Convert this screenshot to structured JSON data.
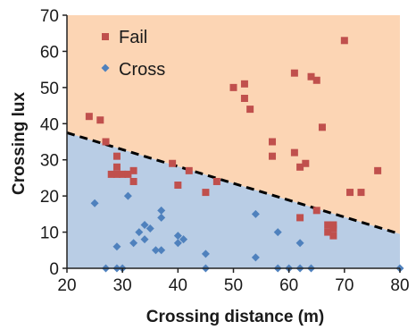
{
  "chart_data": {
    "type": "scatter",
    "title": "",
    "xlabel": "Crossing distance (m)",
    "ylabel": "Crossing lux",
    "xlim": [
      20,
      80
    ],
    "ylim": [
      0,
      70
    ],
    "xticks": [
      20,
      30,
      40,
      50,
      60,
      70,
      80
    ],
    "yticks": [
      0,
      10,
      20,
      30,
      40,
      50,
      60,
      70
    ],
    "grid": false,
    "legend_position": "top-left",
    "regions": {
      "upper_color": "#fcd5b4",
      "lower_color": "#b9cde5"
    },
    "boundary_line": {
      "style": "dashed",
      "color": "#000000",
      "x": [
        20,
        80
      ],
      "y": [
        37.5,
        9.5
      ]
    },
    "series": [
      {
        "name": "Fail",
        "marker": "square",
        "color": "#c0504d",
        "points": [
          [
            24,
            42
          ],
          [
            26,
            41
          ],
          [
            27,
            35
          ],
          [
            28,
            26
          ],
          [
            29,
            26
          ],
          [
            29,
            28
          ],
          [
            29,
            31
          ],
          [
            30,
            26
          ],
          [
            31,
            26
          ],
          [
            32,
            24
          ],
          [
            32,
            27
          ],
          [
            39,
            29
          ],
          [
            40,
            23
          ],
          [
            42,
            27
          ],
          [
            45,
            21
          ],
          [
            47,
            24
          ],
          [
            50,
            50
          ],
          [
            52,
            51
          ],
          [
            52,
            47
          ],
          [
            53,
            44
          ],
          [
            57,
            31
          ],
          [
            57,
            35
          ],
          [
            61,
            54
          ],
          [
            61,
            32
          ],
          [
            62,
            28
          ],
          [
            62,
            14
          ],
          [
            63,
            29
          ],
          [
            64,
            53
          ],
          [
            65,
            52
          ],
          [
            65,
            16
          ],
          [
            66,
            39
          ],
          [
            67,
            12
          ],
          [
            67,
            10
          ],
          [
            68,
            12
          ],
          [
            68,
            11
          ],
          [
            68,
            9
          ],
          [
            70,
            63
          ],
          [
            71,
            21
          ],
          [
            73,
            21
          ],
          [
            76,
            27
          ]
        ]
      },
      {
        "name": "Cross",
        "marker": "diamond",
        "color": "#4f81bd",
        "points": [
          [
            25,
            18
          ],
          [
            27,
            0
          ],
          [
            29,
            0
          ],
          [
            29,
            6
          ],
          [
            30,
            0
          ],
          [
            31,
            20
          ],
          [
            32,
            7
          ],
          [
            33,
            10
          ],
          [
            34,
            12
          ],
          [
            34,
            8
          ],
          [
            35,
            11
          ],
          [
            36,
            5
          ],
          [
            37,
            14
          ],
          [
            37,
            16
          ],
          [
            37,
            5
          ],
          [
            40,
            9
          ],
          [
            40,
            7
          ],
          [
            41,
            8
          ],
          [
            45,
            4
          ],
          [
            45,
            0
          ],
          [
            54,
            15
          ],
          [
            54,
            3
          ],
          [
            58,
            10
          ],
          [
            58,
            0
          ],
          [
            60,
            0
          ],
          [
            62,
            7
          ],
          [
            62,
            0
          ],
          [
            64,
            0
          ],
          [
            80,
            0
          ]
        ]
      }
    ]
  }
}
